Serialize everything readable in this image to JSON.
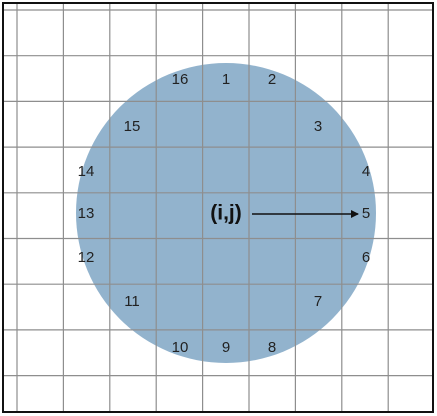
{
  "center": {
    "label": "(i,j)"
  },
  "nodes": [
    {
      "label": "1"
    },
    {
      "label": "2"
    },
    {
      "label": "3"
    },
    {
      "label": "4"
    },
    {
      "label": "5"
    },
    {
      "label": "6"
    },
    {
      "label": "7"
    },
    {
      "label": "8"
    },
    {
      "label": "9"
    },
    {
      "label": "10"
    },
    {
      "label": "11"
    },
    {
      "label": "12"
    },
    {
      "label": "13"
    },
    {
      "label": "14"
    },
    {
      "label": "15"
    },
    {
      "label": "16"
    }
  ]
}
